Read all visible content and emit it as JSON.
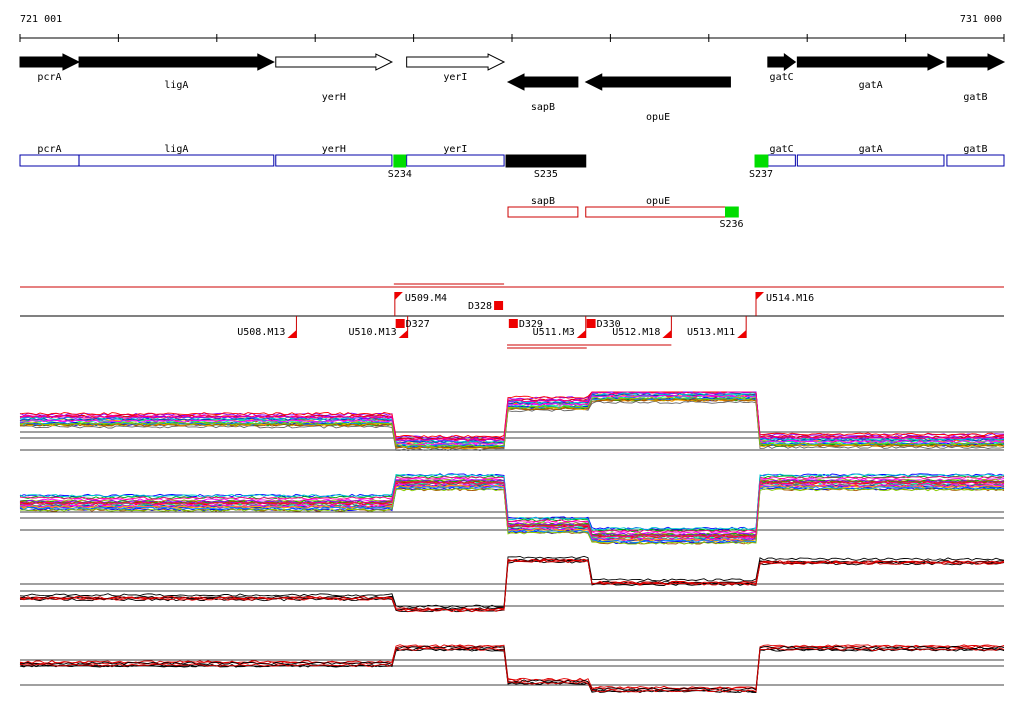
{
  "coords": {
    "start_label": "721 001",
    "end_label": "731 000",
    "start": 721001,
    "end": 731000
  },
  "genes": [
    {
      "name": "pcrA",
      "start": 721001,
      "end": 721600,
      "strand": "+",
      "fill": "#000000"
    },
    {
      "name": "ligA",
      "start": 721601,
      "end": 723580,
      "strand": "+",
      "fill": "#000000"
    },
    {
      "name": "yerH",
      "start": 723600,
      "end": 724780,
      "strand": "+",
      "fill": "#ffffff"
    },
    {
      "name": "yerI",
      "start": 724930,
      "end": 725920,
      "strand": "+",
      "fill": "#ffffff"
    },
    {
      "name": "sapB",
      "start": 725960,
      "end": 726670,
      "strand": "-",
      "fill": "#000000"
    },
    {
      "name": "opuE",
      "start": 726750,
      "end": 728220,
      "strand": "-",
      "fill": "#000000"
    },
    {
      "name": "gatC",
      "start": 728600,
      "end": 728880,
      "strand": "+",
      "fill": "#000000"
    },
    {
      "name": "gatA",
      "start": 728900,
      "end": 730390,
      "strand": "+",
      "fill": "#000000"
    },
    {
      "name": "gatB",
      "start": 730420,
      "end": 731000,
      "strand": "+",
      "fill": "#000000"
    }
  ],
  "fwd_boxes": [
    {
      "name": "pcrA",
      "start": 721001,
      "end": 721600,
      "color": "#0000aa"
    },
    {
      "name": "ligA",
      "start": 721601,
      "end": 723580,
      "color": "#0000aa"
    },
    {
      "name": "yerH",
      "start": 723600,
      "end": 724780,
      "color": "#0000aa"
    },
    {
      "name": "yerI",
      "start": 724930,
      "end": 725920,
      "color": "#0000aa"
    },
    {
      "name": "gatC",
      "start": 728600,
      "end": 728880,
      "color": "#0000aa"
    },
    {
      "name": "gatA",
      "start": 728900,
      "end": 730390,
      "color": "#0000aa"
    },
    {
      "name": "gatB",
      "start": 730420,
      "end": 731000,
      "color": "#0000aa"
    }
  ],
  "rev_boxes": [
    {
      "name": "sapB",
      "start": 725960,
      "end": 726670,
      "color": "#cc0000"
    },
    {
      "name": "opuE",
      "start": 726750,
      "end": 728220,
      "color": "#cc0000"
    }
  ],
  "features": [
    {
      "name": "S234",
      "start": 724800,
      "end": 724920,
      "color": "#00dd00"
    },
    {
      "name": "S235",
      "start": 725940,
      "end": 726750,
      "color": "#000000"
    },
    {
      "name": "S237",
      "start": 728470,
      "end": 728600,
      "color": "#00dd00"
    },
    {
      "name": "S236",
      "start": 728170,
      "end": 728300,
      "color": "#00dd00"
    }
  ],
  "segments": {
    "up_labels": [
      {
        "name": "U509.M4",
        "pos": 724810
      },
      {
        "name": "U514.M16",
        "pos": 728480
      }
    ],
    "down_labels": [
      {
        "name": "U508.M13",
        "pos": 723810
      },
      {
        "name": "U510.M13",
        "pos": 724940
      },
      {
        "name": "U511.M3",
        "pos": 726750
      },
      {
        "name": "U512.M18",
        "pos": 727620
      },
      {
        "name": "U513.M11",
        "pos": 728380
      }
    ],
    "boxes_up": [
      {
        "name": "D328",
        "pos": 725920
      }
    ],
    "boxes_down": [
      {
        "name": "D327",
        "pos": 724920
      },
      {
        "name": "D329",
        "pos": 726070
      },
      {
        "name": "D330",
        "pos": 726860
      }
    ]
  },
  "tracks": {
    "levels_by_region": [
      [
        721001,
        42,
        40,
        22
      ],
      [
        724820,
        20,
        60,
        10
      ],
      [
        725920,
        58,
        18,
        62
      ],
      [
        726780,
        66,
        8,
        38
      ],
      [
        728480,
        22,
        60,
        60
      ]
    ]
  }
}
